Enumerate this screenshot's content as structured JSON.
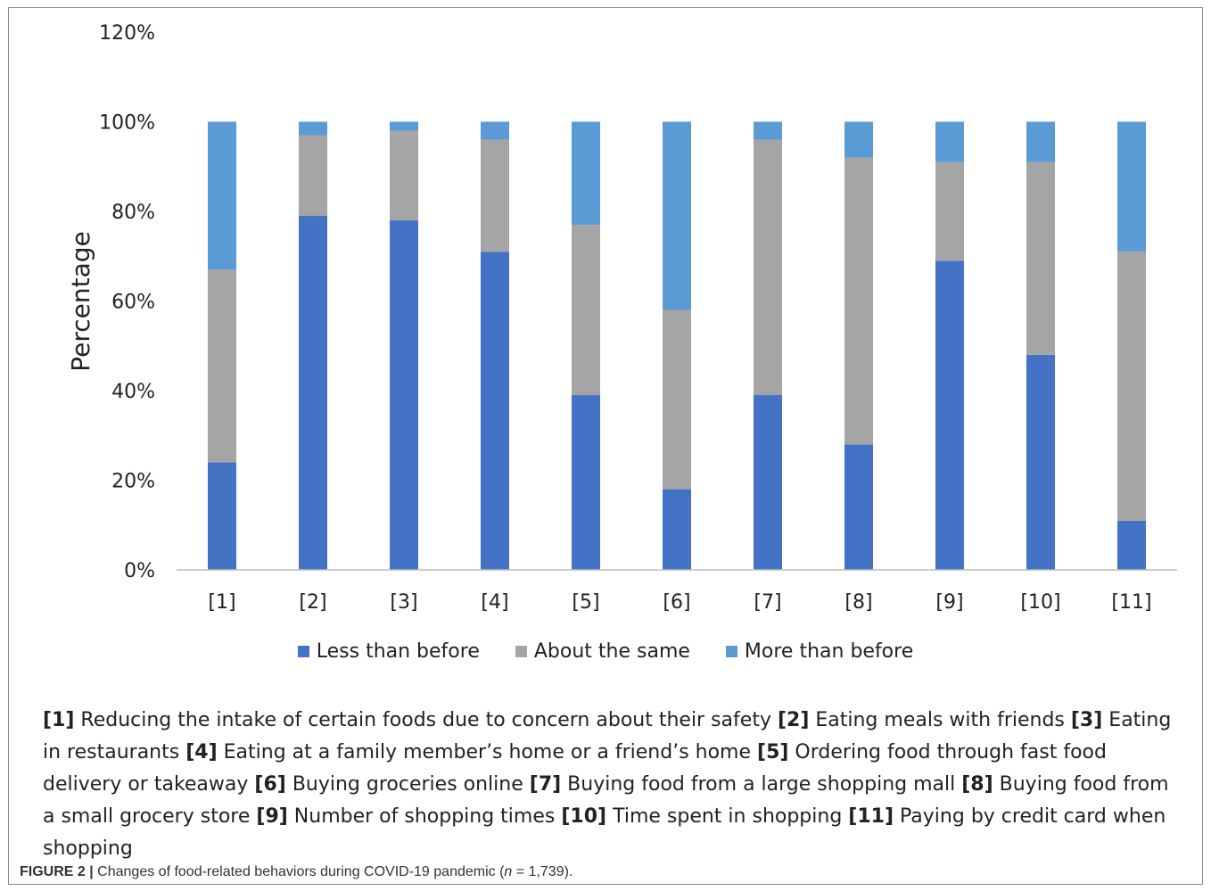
{
  "chart_data": {
    "type": "bar",
    "stacked": true,
    "categories": [
      "[1]",
      "[2]",
      "[3]",
      "[4]",
      "[5]",
      "[6]",
      "[7]",
      "[8]",
      "[9]",
      "[10]",
      "[11]"
    ],
    "series": [
      {
        "name": "Less than before",
        "color": "#4472c4",
        "values": [
          24,
          79,
          78,
          71,
          39,
          18,
          39,
          28,
          69,
          48,
          11
        ]
      },
      {
        "name": "About the same",
        "color": "#a5a5a5",
        "values": [
          43,
          18,
          20,
          25,
          38,
          40,
          57,
          64,
          22,
          43,
          60
        ]
      },
      {
        "name": "More than before",
        "color": "#5b9bd5",
        "values": [
          33,
          3,
          2,
          4,
          23,
          42,
          4,
          8,
          9,
          9,
          29
        ]
      }
    ],
    "ylabel": "Percentage",
    "ylim": [
      0,
      120
    ],
    "yticks": [
      "0%",
      "20%",
      "40%",
      "60%",
      "80%",
      "100%",
      "120%"
    ],
    "grid": false,
    "legend_position": "bottom"
  },
  "key_items": [
    {
      "num": "[1]",
      "text": "Reducing the intake of certain foods due to concern about their safety"
    },
    {
      "num": "[2]",
      "text": "Eating meals with friends"
    },
    {
      "num": "[3]",
      "text": "Eating in restaurants"
    },
    {
      "num": "[4]",
      "text": "Eating at a family member’s home or a friend’s home"
    },
    {
      "num": "[5]",
      "text": "Ordering food through fast food delivery or takeaway"
    },
    {
      "num": "[6]",
      "text": "Buying groceries online"
    },
    {
      "num": "[7]",
      "text": "Buying food from a large shopping mall"
    },
    {
      "num": "[8]",
      "text": "Buying food from a small grocery store"
    },
    {
      "num": "[9]",
      "text": "Number of shopping times"
    },
    {
      "num": "[10]",
      "text": "Time spent in shopping"
    },
    {
      "num": "[11]",
      "text": "Paying by credit card when shopping"
    }
  ],
  "caption": {
    "label": "FIGURE 2 |",
    "text_before": "Changes of food-related behaviors during COVID-19 pandemic (",
    "n_symbol": "n",
    "text_after": " = 1,739)."
  }
}
